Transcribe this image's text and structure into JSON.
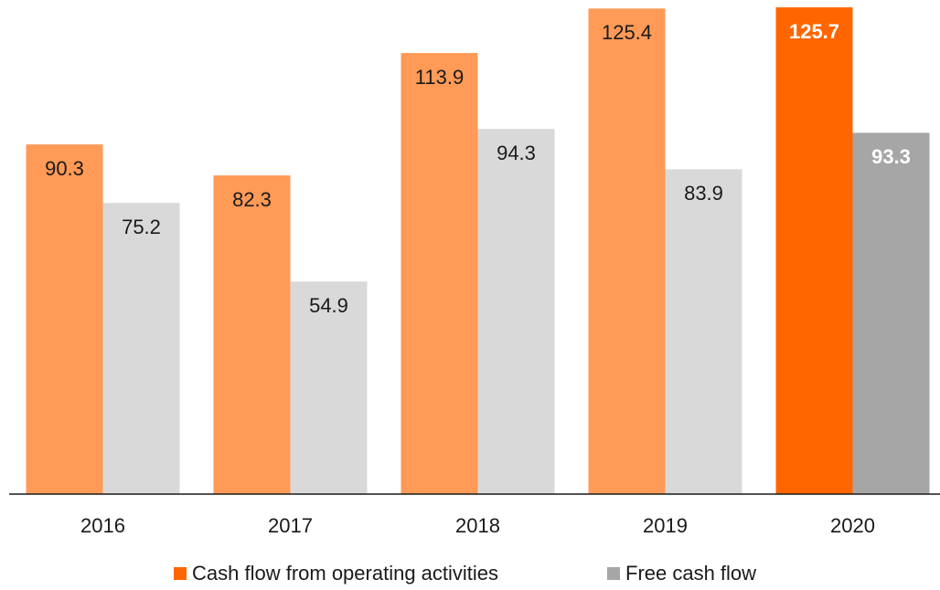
{
  "chart_data": {
    "type": "bar",
    "categories": [
      "2016",
      "2017",
      "2018",
      "2019",
      "2020"
    ],
    "series": [
      {
        "name": "Cash flow from operating activities",
        "color": "#ff6600",
        "muted_color": "#ff9a57",
        "values": [
          90.3,
          82.3,
          113.9,
          125.4,
          125.7
        ]
      },
      {
        "name": "Free cash flow",
        "color": "#a6a6a6",
        "muted_color": "#d9d9d9",
        "values": [
          75.2,
          54.9,
          94.3,
          83.9,
          93.3
        ]
      }
    ],
    "highlight": "2020",
    "ylim": [
      0,
      127.6
    ],
    "legend": "bottom"
  }
}
